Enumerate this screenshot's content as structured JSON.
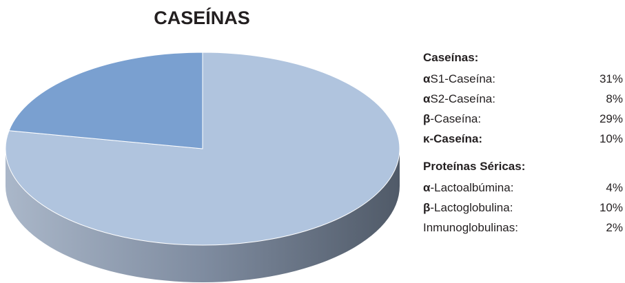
{
  "chart_data": {
    "type": "pie",
    "title": "CASEÍNAS",
    "values": [
      78,
      22
    ],
    "colors": [
      "#b0c4de",
      "#7aa0d0"
    ]
  },
  "legend": [
    {
      "heading": "Caseínas:",
      "items": [
        {
          "bold": "α",
          "text": "S1-Caseína:",
          "value": "31%"
        },
        {
          "bold": "α",
          "text": "S2-Caseína:",
          "value": "8%"
        },
        {
          "bold": "β",
          "text": "-Caseína:",
          "value": "29%"
        },
        {
          "bold": "κ-Caseína:",
          "value": "10%"
        }
      ]
    },
    {
      "heading": "Proteínas Séricas:",
      "items": [
        {
          "bold": "α",
          "text": "-Lactoalbúmina:",
          "value": "4%"
        },
        {
          "bold": "β",
          "text": "-Lactoglobulina:",
          "value": "10%"
        },
        {
          "text": "Inmunoglobulinas:",
          "value": "2%"
        }
      ]
    }
  ]
}
